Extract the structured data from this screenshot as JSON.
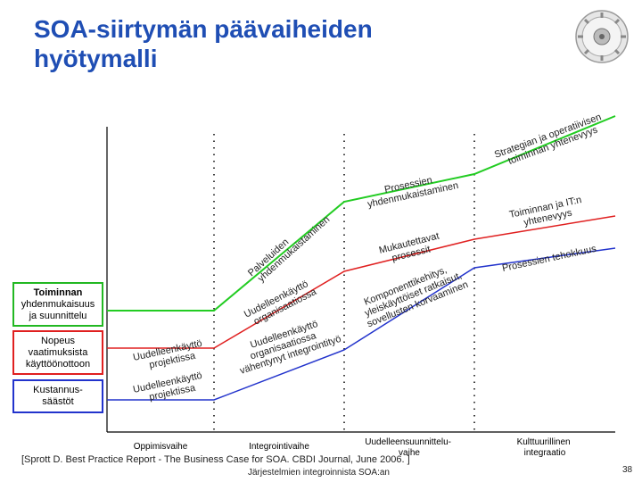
{
  "title": {
    "line1": "SOA-siirtymän päävaiheiden",
    "line2": "hyötymalli"
  },
  "left_boxes": [
    {
      "lines": [
        "Toiminnan",
        "yhdenmukaisuus",
        "ja suunnittelu"
      ],
      "color": "#22b822"
    },
    {
      "lines": [
        "Nopeus",
        "vaatimuksista",
        "käyttöönottoon"
      ],
      "color": "#e02020"
    },
    {
      "lines": [
        "Kustannus-",
        "säästöt"
      ],
      "color": "#2233cc"
    }
  ],
  "phases": [
    {
      "lines": [
        "Oppimisvaihe"
      ]
    },
    {
      "lines": [
        "Integrointivaihe"
      ]
    },
    {
      "lines": [
        "Uudelleensuunnittelu-",
        "vaihe"
      ]
    },
    {
      "lines": [
        "Kulttuurillinen",
        "integraatio"
      ]
    }
  ],
  "curve_labels": {
    "green": [
      {
        "lines": [
          "Palveluiden",
          "yhdenmukaistaminen"
        ]
      },
      {
        "lines": [
          "Prosessien",
          "yhdenmukaistaminen"
        ]
      },
      {
        "lines": [
          "Strategian ja operatiivisen",
          "toiminnan yhtenevyys"
        ]
      }
    ],
    "red": [
      {
        "lines": [
          "Uudelleenkäyttö",
          "projektissa"
        ]
      },
      {
        "lines": [
          "Uudelleenkäyttö",
          "organisaatiossa"
        ]
      },
      {
        "lines": [
          "Mukautettavat",
          "prosessit"
        ]
      },
      {
        "lines": [
          "Toiminnan ja IT:n",
          "yhtenevyys"
        ]
      }
    ],
    "blue": [
      {
        "lines": [
          "Uudelleenkäyttö",
          "projektissa"
        ]
      },
      {
        "lines": [
          "Uudelleenkäyttö",
          "organisaatiossa",
          "vähentynyt integrointityö"
        ]
      },
      {
        "lines": [
          "Komponenttikehitys,",
          "yleiskäyttöiset ratkaisut,",
          "sovellusten korvaaminen"
        ]
      },
      {
        "lines": [
          "Prosessien tehokkuus"
        ]
      }
    ]
  },
  "colors": {
    "title": "#1f4eb4",
    "green": "#22cc22",
    "red": "#e02020",
    "blue": "#2233cc"
  },
  "source": "[Sprott D. Best Practice Report - The Business Case for SOA. CBDI Journal, June 2006. ]",
  "footer": "Järjestelmien integroinnista SOA:an",
  "page_number": "38"
}
